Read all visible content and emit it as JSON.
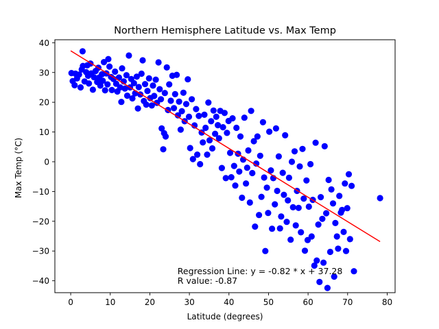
{
  "chart_data": {
    "type": "scatter",
    "title": "Northern Hemisphere Latitude vs. Max Temp",
    "xlabel": "Latitude (degrees)",
    "ylabel": "Max Temp (°C)",
    "xlim": [
      -4,
      82
    ],
    "ylim": [
      -44,
      41
    ],
    "xticks": [
      0,
      10,
      20,
      30,
      40,
      50,
      60,
      70,
      80
    ],
    "yticks": [
      -40,
      -30,
      -20,
      -10,
      0,
      10,
      20,
      30,
      40
    ],
    "grid": false,
    "colors": {
      "points": "#0000ff",
      "regression": "#ff0000",
      "axes": "#000000"
    },
    "regression": {
      "slope": -0.82,
      "intercept": 37.28,
      "x_range": [
        0.0,
        78.2
      ]
    },
    "annotations": [
      {
        "text": "Regression Line: y = -0.82 * x + 37.28",
        "x": 27,
        "y": -37.8
      },
      {
        "text": "R value: -0.87",
        "x": 27,
        "y": -41.0
      }
    ],
    "points": [
      [
        0.2,
        29.8
      ],
      [
        0.5,
        27.1
      ],
      [
        1.0,
        25.7
      ],
      [
        1.2,
        29.6
      ],
      [
        1.6,
        28.0
      ],
      [
        2.1,
        29.3
      ],
      [
        2.5,
        25.0
      ],
      [
        2.8,
        31.0
      ],
      [
        3.0,
        37.1
      ],
      [
        3.1,
        32.2
      ],
      [
        3.5,
        27.0
      ],
      [
        3.9,
        30.1
      ],
      [
        4.2,
        32.4
      ],
      [
        4.4,
        28.9
      ],
      [
        4.6,
        26.3
      ],
      [
        5.0,
        33.0
      ],
      [
        5.2,
        29.7
      ],
      [
        5.6,
        24.2
      ],
      [
        5.9,
        28.4
      ],
      [
        6.3,
        30.5
      ],
      [
        6.7,
        26.8
      ],
      [
        7.0,
        31.6
      ],
      [
        7.2,
        28.3
      ],
      [
        7.5,
        25.6
      ],
      [
        7.9,
        29.4
      ],
      [
        8.1,
        27.2
      ],
      [
        8.4,
        33.5
      ],
      [
        8.7,
        24.0
      ],
      [
        9.0,
        29.7
      ],
      [
        9.3,
        26.0
      ],
      [
        9.5,
        34.5
      ],
      [
        9.8,
        32.0
      ],
      [
        10.2,
        28.5
      ],
      [
        10.4,
        24.1
      ],
      [
        10.8,
        27.8
      ],
      [
        11.2,
        30.3
      ],
      [
        11.5,
        26.2
      ],
      [
        11.8,
        23.6
      ],
      [
        12.2,
        28.3
      ],
      [
        12.5,
        25.0
      ],
      [
        12.8,
        20.1
      ],
      [
        13.0,
        31.4
      ],
      [
        13.4,
        27.0
      ],
      [
        13.7,
        24.6
      ],
      [
        14.1,
        29.1
      ],
      [
        14.3,
        22.2
      ],
      [
        14.7,
        35.7
      ],
      [
        15.0,
        25.0
      ],
      [
        15.3,
        27.8
      ],
      [
        15.6,
        21.3
      ],
      [
        16.0,
        26.4
      ],
      [
        16.3,
        23.0
      ],
      [
        16.7,
        28.6
      ],
      [
        17.0,
        17.9
      ],
      [
        17.2,
        25.1
      ],
      [
        17.6,
        22.6
      ],
      [
        17.9,
        29.6
      ],
      [
        18.2,
        34.1
      ],
      [
        18.5,
        20.4
      ],
      [
        18.8,
        26.1
      ],
      [
        19.1,
        19.2
      ],
      [
        19.4,
        23.8
      ],
      [
        19.8,
        28.0
      ],
      [
        20.1,
        21.4
      ],
      [
        20.5,
        18.9
      ],
      [
        20.8,
        25.6
      ],
      [
        21.1,
        22.1
      ],
      [
        21.5,
        27.6
      ],
      [
        21.8,
        19.8
      ],
      [
        22.2,
        33.4
      ],
      [
        22.5,
        24.4
      ],
      [
        22.8,
        21.0
      ],
      [
        23.0,
        11.2
      ],
      [
        23.4,
        4.2
      ],
      [
        23.6,
        9.6
      ],
      [
        23.8,
        23.1
      ],
      [
        24.0,
        8.5
      ],
      [
        24.3,
        31.7
      ],
      [
        24.6,
        17.4
      ],
      [
        24.9,
        26.0
      ],
      [
        25.3,
        20.5
      ],
      [
        25.7,
        28.9
      ],
      [
        26.1,
        18.0
      ],
      [
        26.4,
        22.7
      ],
      [
        26.8,
        29.2
      ],
      [
        27.1,
        15.6
      ],
      [
        27.4,
        20.2
      ],
      [
        27.8,
        10.8
      ],
      [
        28.1,
        17.0
      ],
      [
        28.5,
        23.2
      ],
      [
        28.8,
        13.6
      ],
      [
        29.2,
        19.4
      ],
      [
        29.6,
        27.7
      ],
      [
        29.9,
        15.1
      ],
      [
        30.2,
        4.6
      ],
      [
        30.6,
        21.0
      ],
      [
        30.9,
        0.9
      ],
      [
        31.3,
        12.2
      ],
      [
        31.7,
        17.7
      ],
      [
        32.0,
        2.4
      ],
      [
        32.4,
        15.4
      ],
      [
        32.7,
        -0.8
      ],
      [
        33.1,
        9.8
      ],
      [
        33.4,
        6.5
      ],
      [
        33.8,
        15.8
      ],
      [
        34.1,
        11.4
      ],
      [
        34.5,
        2.4
      ],
      [
        34.8,
        19.9
      ],
      [
        35.1,
        7.2
      ],
      [
        35.5,
        13.6
      ],
      [
        35.8,
        4.5
      ],
      [
        36.1,
        17.2
      ],
      [
        36.5,
        9.4
      ],
      [
        36.8,
        15.1
      ],
      [
        37.2,
        12.3
      ],
      [
        37.5,
        7.9
      ],
      [
        37.8,
        17.1
      ],
      [
        38.2,
        -2.1
      ],
      [
        38.5,
        11.6
      ],
      [
        38.9,
        16.4
      ],
      [
        39.2,
        -5.5
      ],
      [
        39.5,
        9.7
      ],
      [
        39.9,
        13.7
      ],
      [
        40.3,
        3.0
      ],
      [
        40.6,
        -5.2
      ],
      [
        40.9,
        14.6
      ],
      [
        41.3,
        -1.4
      ],
      [
        41.6,
        -8.0
      ],
      [
        41.9,
        11.4
      ],
      [
        42.3,
        2.7
      ],
      [
        42.6,
        -3.3
      ],
      [
        42.9,
        8.5
      ],
      [
        43.3,
        -12.1
      ],
      [
        43.6,
        0.7
      ],
      [
        43.9,
        14.8
      ],
      [
        44.3,
        -7.3
      ],
      [
        44.6,
        -2.0
      ],
      [
        44.9,
        3.8
      ],
      [
        45.3,
        -13.7
      ],
      [
        45.6,
        17.1
      ],
      [
        45.9,
        -3.8
      ],
      [
        46.3,
        6.9
      ],
      [
        46.6,
        -21.8
      ],
      [
        46.9,
        -0.6
      ],
      [
        47.2,
        8.5
      ],
      [
        47.6,
        -17.9
      ],
      [
        47.9,
        2.0
      ],
      [
        48.2,
        -11.8
      ],
      [
        48.6,
        13.3
      ],
      [
        48.9,
        -5.3
      ],
      [
        49.2,
        -30.0
      ],
      [
        49.6,
        -8.7
      ],
      [
        49.9,
        -17.2
      ],
      [
        50.2,
        10.1
      ],
      [
        50.6,
        -2.9
      ],
      [
        50.9,
        -22.5
      ],
      [
        51.2,
        -5.5
      ],
      [
        51.6,
        -14.3
      ],
      [
        51.9,
        11.2
      ],
      [
        52.2,
        -9.8
      ],
      [
        52.6,
        1.8
      ],
      [
        52.9,
        -22.4
      ],
      [
        53.2,
        -18.4
      ],
      [
        53.6,
        -3.7
      ],
      [
        53.9,
        -11.1
      ],
      [
        54.2,
        8.9
      ],
      [
        54.6,
        -20.2
      ],
      [
        54.9,
        -13.0
      ],
      [
        55.2,
        -5.4
      ],
      [
        55.6,
        -26.2
      ],
      [
        55.9,
        0.0
      ],
      [
        56.2,
        -15.3
      ],
      [
        56.6,
        3.5
      ],
      [
        56.9,
        -21.4
      ],
      [
        57.2,
        -9.8
      ],
      [
        57.6,
        -15.5
      ],
      [
        57.9,
        -1.6
      ],
      [
        58.2,
        -23.7
      ],
      [
        58.6,
        4.3
      ],
      [
        58.9,
        -12.4
      ],
      [
        59.2,
        -29.9
      ],
      [
        59.6,
        -6.3
      ],
      [
        59.9,
        -26.3
      ],
      [
        60.2,
        -15.1
      ],
      [
        60.6,
        -0.8
      ],
      [
        60.9,
        -25.1
      ],
      [
        61.2,
        -12.8
      ],
      [
        61.6,
        -34.9
      ],
      [
        61.9,
        6.4
      ],
      [
        62.2,
        -33.2
      ],
      [
        62.6,
        -21.1
      ],
      [
        62.9,
        -40.4
      ],
      [
        63.2,
        -11.9
      ],
      [
        63.6,
        -19.2
      ],
      [
        63.9,
        -33.9
      ],
      [
        64.2,
        5.2
      ],
      [
        64.6,
        -17.3
      ],
      [
        64.9,
        -42.4
      ],
      [
        65.2,
        -6.1
      ],
      [
        65.6,
        -30.3
      ],
      [
        65.9,
        -9.3
      ],
      [
        66.3,
        -14.0
      ],
      [
        66.6,
        -38.6
      ],
      [
        66.9,
        -20.6
      ],
      [
        67.3,
        -25.1
      ],
      [
        67.6,
        -29.2
      ],
      [
        67.9,
        -11.5
      ],
      [
        68.3,
        -17.1
      ],
      [
        68.6,
        -16.2
      ],
      [
        69.0,
        -23.6
      ],
      [
        69.3,
        -7.3
      ],
      [
        69.6,
        -30.0
      ],
      [
        69.9,
        -15.6
      ],
      [
        70.3,
        -4.2
      ],
      [
        70.6,
        -26.0
      ],
      [
        71.0,
        -8.1
      ],
      [
        71.6,
        -36.8
      ],
      [
        78.2,
        -12.2
      ]
    ]
  }
}
